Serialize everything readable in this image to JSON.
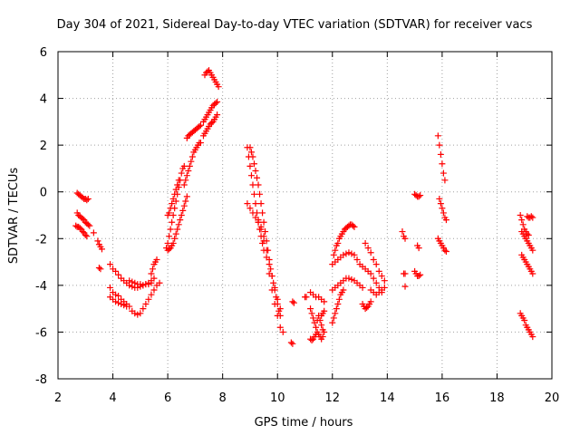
{
  "chart_data": {
    "type": "scatter",
    "title": "Day 304 of 2021, Sidereal Day-to-day VTEC variation (SDTVAR) for receiver vacs",
    "xlabel": "GPS time / hours",
    "ylabel": "SDTVAR / TECUs",
    "xlim": [
      2,
      20
    ],
    "ylim": [
      -8,
      6
    ],
    "xticks": [
      "2",
      "4",
      "6",
      "8",
      "10",
      "12",
      "14",
      "16",
      "18",
      "20"
    ],
    "yticks": [
      "-8",
      "-6",
      "-4",
      "-2",
      "0",
      "2",
      "4",
      "6"
    ],
    "grid": true,
    "marker": "+",
    "color": "#ff0000",
    "series": [
      {
        "name": "arc-1",
        "x": [
          2.7,
          2.75,
          2.8,
          2.85,
          2.9,
          2.95,
          3.0,
          3.05,
          3.1
        ],
        "y": [
          -0.05,
          -0.1,
          -0.15,
          -0.2,
          -0.25,
          -0.3,
          -0.3,
          -0.35,
          -0.3
        ]
      },
      {
        "name": "arc-2",
        "x": [
          2.7,
          2.75,
          2.8,
          2.85,
          2.9,
          2.95,
          3.0,
          3.05,
          3.1,
          3.15
        ],
        "y": [
          -0.9,
          -1.0,
          -1.05,
          -1.1,
          -1.15,
          -1.2,
          -1.3,
          -1.35,
          -1.4,
          -1.45
        ]
      },
      {
        "name": "arc-3",
        "x": [
          2.65,
          2.7,
          2.75,
          2.8,
          2.85,
          2.9,
          2.95,
          3.0,
          3.05
        ],
        "y": [
          -1.45,
          -1.5,
          -1.5,
          -1.55,
          -1.6,
          -1.7,
          -1.75,
          -1.85,
          -1.9
        ]
      },
      {
        "name": "arc-4",
        "x": [
          3.45,
          3.5,
          3.55,
          3.6
        ],
        "y": [
          -2.1,
          -2.25,
          -2.35,
          -2.45
        ]
      },
      {
        "name": "arc-5",
        "x": [
          3.5,
          3.55
        ],
        "y": [
          -3.25,
          -3.3
        ]
      },
      {
        "name": "arc-6",
        "x": [
          3.3
        ],
        "y": [
          -1.75
        ]
      },
      {
        "name": "arc-7",
        "x": [
          3.9,
          4.0,
          4.1,
          4.2,
          4.3,
          4.4,
          4.5,
          4.6,
          4.7,
          4.8,
          4.9,
          5.0,
          5.1,
          5.2,
          5.3,
          5.4
        ],
        "y": [
          -3.1,
          -3.3,
          -3.4,
          -3.55,
          -3.7,
          -3.8,
          -3.9,
          -4.0,
          -4.05,
          -4.1,
          -4.1,
          -4.05,
          -4.0,
          -3.95,
          -3.95,
          -3.9
        ]
      },
      {
        "name": "arc-8",
        "x": [
          3.9,
          4.0,
          4.1,
          4.2,
          4.3,
          4.4,
          4.5
        ],
        "y": [
          -4.1,
          -4.3,
          -4.4,
          -4.45,
          -4.6,
          -4.7,
          -4.8
        ]
      },
      {
        "name": "arc-9",
        "x": [
          3.9,
          4.0,
          4.1,
          4.2,
          4.3,
          4.4,
          4.5,
          4.6
        ],
        "y": [
          -4.5,
          -4.6,
          -4.7,
          -4.75,
          -4.8,
          -4.85,
          -4.9,
          -4.9
        ]
      },
      {
        "name": "arc-10",
        "x": [
          4.6,
          4.7,
          4.8,
          4.9,
          5.0,
          5.1,
          5.2,
          5.3,
          5.4,
          5.5
        ],
        "y": [
          -3.8,
          -3.85,
          -3.9,
          -3.95,
          -3.95,
          -4.0,
          -3.95,
          -3.9,
          -3.8,
          -3.7
        ]
      },
      {
        "name": "arc-11",
        "x": [
          5.4,
          5.45,
          5.5,
          5.55,
          5.6
        ],
        "y": [
          -3.5,
          -3.3,
          -3.1,
          -3.0,
          -2.9
        ]
      },
      {
        "name": "arc-12",
        "x": [
          4.7,
          4.8,
          4.9,
          5.0,
          5.1,
          5.2,
          5.3,
          5.4,
          5.5,
          5.6,
          5.7
        ],
        "y": [
          -5.1,
          -5.2,
          -5.25,
          -5.2,
          -5.0,
          -4.8,
          -4.6,
          -4.4,
          -4.2,
          -4.0,
          -3.9
        ]
      },
      {
        "name": "arc-13",
        "x": [
          5.95,
          6.0,
          6.05,
          6.1,
          6.15,
          6.2,
          6.25,
          6.3,
          6.35,
          6.4,
          6.45,
          6.5,
          6.55,
          6.6
        ],
        "y": [
          -2.4,
          -2.2,
          -1.9,
          -1.6,
          -1.3,
          -1.0,
          -0.7,
          -0.4,
          -0.1,
          0.2,
          0.5,
          0.8,
          1.0,
          1.1
        ]
      },
      {
        "name": "arc-14",
        "x": [
          6.0,
          6.05,
          6.1,
          6.15,
          6.2,
          6.25,
          6.3,
          6.35,
          6.4
        ],
        "y": [
          -1.0,
          -0.9,
          -0.7,
          -0.5,
          -0.3,
          -0.1,
          0.1,
          0.3,
          0.5
        ]
      },
      {
        "name": "arc-15",
        "x": [
          6.0,
          6.05,
          6.1,
          6.15,
          6.2,
          6.25,
          6.3,
          6.35,
          6.4,
          6.45,
          6.5,
          6.55,
          6.6,
          6.65,
          6.7
        ],
        "y": [
          -2.5,
          -2.45,
          -2.4,
          -2.3,
          -2.2,
          -2.0,
          -1.8,
          -1.6,
          -1.4,
          -1.2,
          -1.0,
          -0.8,
          -0.6,
          -0.4,
          -0.2
        ]
      },
      {
        "name": "arc-16",
        "x": [
          6.6,
          6.65,
          6.7,
          6.75,
          6.8,
          6.85,
          6.9,
          6.95,
          7.0,
          7.05,
          7.1,
          7.15,
          7.2
        ],
        "y": [
          0.3,
          0.5,
          0.7,
          0.9,
          1.1,
          1.3,
          1.5,
          1.7,
          1.8,
          1.9,
          2.0,
          2.1,
          2.1
        ]
      },
      {
        "name": "arc-17",
        "x": [
          6.7,
          6.75,
          6.8,
          6.85,
          6.9,
          6.95,
          7.0,
          7.05,
          7.1,
          7.15,
          7.2
        ],
        "y": [
          2.3,
          2.4,
          2.45,
          2.5,
          2.55,
          2.6,
          2.65,
          2.7,
          2.75,
          2.8,
          2.85
        ]
      },
      {
        "name": "arc-18",
        "x": [
          7.3,
          7.35,
          7.4,
          7.45,
          7.5,
          7.55,
          7.6,
          7.65,
          7.7,
          7.75,
          7.8
        ],
        "y": [
          2.4,
          2.5,
          2.6,
          2.7,
          2.8,
          2.9,
          2.95,
          3.0,
          3.1,
          3.2,
          3.3
        ]
      },
      {
        "name": "arc-19",
        "x": [
          7.3,
          7.35,
          7.4,
          7.45,
          7.5,
          7.55,
          7.6,
          7.65,
          7.7,
          7.75,
          7.8
        ],
        "y": [
          3.0,
          3.1,
          3.2,
          3.3,
          3.4,
          3.5,
          3.6,
          3.7,
          3.75,
          3.8,
          3.85
        ]
      },
      {
        "name": "arc-20",
        "x": [
          7.35,
          7.4,
          7.45,
          7.5,
          7.55,
          7.6,
          7.65,
          7.7,
          7.75,
          7.8,
          7.85
        ],
        "y": [
          5.0,
          5.1,
          5.15,
          5.2,
          5.1,
          5.0,
          4.9,
          4.8,
          4.7,
          4.6,
          4.5
        ]
      },
      {
        "name": "arc-21",
        "x": [
          8.9,
          8.95,
          9.0,
          9.05,
          9.1,
          9.15,
          9.2,
          9.25,
          9.3,
          9.35,
          9.4,
          9.45,
          9.5
        ],
        "y": [
          1.9,
          1.5,
          1.1,
          0.7,
          0.3,
          -0.1,
          -0.5,
          -0.9,
          -1.3,
          -1.6,
          -1.9,
          -2.2,
          -2.5
        ]
      },
      {
        "name": "arc-22",
        "x": [
          9.0,
          9.05,
          9.1,
          9.15,
          9.2,
          9.25,
          9.3,
          9.35,
          9.4,
          9.45,
          9.5,
          9.55,
          9.6,
          9.65,
          9.7,
          9.75,
          9.8,
          9.85,
          9.9,
          9.95,
          10.0,
          10.05,
          10.1
        ],
        "y": [
          1.9,
          1.7,
          1.5,
          1.2,
          0.9,
          0.6,
          0.3,
          -0.1,
          -0.5,
          -0.9,
          -1.3,
          -1.7,
          -2.1,
          -2.5,
          -2.9,
          -3.3,
          -3.6,
          -3.9,
          -4.2,
          -4.5,
          -4.8,
          -5.1,
          -5.3
        ]
      },
      {
        "name": "arc-23",
        "x": [
          8.9,
          9.0,
          9.1,
          9.2,
          9.3,
          9.4,
          9.5,
          9.6,
          9.7,
          9.8,
          9.9,
          10.0,
          10.1,
          10.2
        ],
        "y": [
          -0.5,
          -0.7,
          -0.9,
          -1.1,
          -1.3,
          -1.6,
          -2.1,
          -2.8,
          -3.5,
          -4.2,
          -4.8,
          -5.3,
          -5.8,
          -6.0
        ]
      },
      {
        "name": "arc-24",
        "x": [
          9.3,
          9.4,
          9.5,
          9.6,
          9.7,
          9.8,
          9.9,
          10.0,
          10.1
        ],
        "y": [
          -1.2,
          -1.5,
          -1.9,
          -2.5,
          -3.1,
          -3.6,
          -4.1,
          -4.6,
          -5.0
        ]
      },
      {
        "name": "arc-25",
        "x": [
          10.5,
          10.55
        ],
        "y": [
          -6.45,
          -6.5
        ]
      },
      {
        "name": "arc-26",
        "x": [
          10.55,
          10.6
        ],
        "y": [
          -4.7,
          -4.75
        ]
      },
      {
        "name": "arc-27",
        "x": [
          11.0,
          11.05
        ],
        "y": [
          -4.5,
          -4.5
        ]
      },
      {
        "name": "arc-28",
        "x": [
          11.2,
          11.3,
          11.4,
          11.5,
          11.6,
          11.7
        ],
        "y": [
          -4.3,
          -4.4,
          -4.5,
          -4.5,
          -4.6,
          -4.7
        ]
      },
      {
        "name": "arc-29",
        "x": [
          11.2,
          11.25,
          11.3,
          11.35,
          11.4,
          11.45,
          11.5,
          11.55,
          11.6,
          11.65,
          11.7
        ],
        "y": [
          -5.0,
          -5.2,
          -5.4,
          -5.6,
          -5.8,
          -5.5,
          -5.3,
          -5.5,
          -5.7,
          -5.9,
          -6.0
        ]
      },
      {
        "name": "arc-30",
        "x": [
          11.2,
          11.25,
          11.3,
          11.35,
          11.4,
          11.45,
          11.5,
          11.55,
          11.6,
          11.65
        ],
        "y": [
          -6.3,
          -6.35,
          -6.3,
          -6.2,
          -6.1,
          -6.0,
          -6.1,
          -6.2,
          -6.3,
          -6.2
        ]
      },
      {
        "name": "arc-31",
        "x": [
          11.6,
          11.65,
          11.7
        ],
        "y": [
          -5.3,
          -5.2,
          -5.1
        ]
      },
      {
        "name": "arc-32",
        "x": [
          12.05,
          12.1,
          12.15,
          12.2,
          12.25,
          12.3,
          12.35,
          12.4,
          12.45,
          12.5,
          12.55,
          12.6,
          12.65,
          12.7,
          12.75,
          12.8
        ],
        "y": [
          -2.7,
          -2.5,
          -2.3,
          -2.2,
          -2.0,
          -1.9,
          -1.8,
          -1.7,
          -1.6,
          -1.55,
          -1.5,
          -1.45,
          -1.4,
          -1.4,
          -1.45,
          -1.5
        ]
      },
      {
        "name": "arc-33",
        "x": [
          12.0,
          12.1,
          12.2,
          12.3,
          12.4,
          12.5,
          12.6,
          12.7,
          12.8,
          12.9,
          13.0
        ],
        "y": [
          -3.1,
          -3.0,
          -2.9,
          -2.8,
          -2.7,
          -2.65,
          -2.6,
          -2.65,
          -2.7,
          -2.9,
          -3.1
        ]
      },
      {
        "name": "arc-34",
        "x": [
          12.0,
          12.1,
          12.2,
          12.3,
          12.4,
          12.5,
          12.6,
          12.7,
          12.8,
          12.9,
          13.0,
          13.1
        ],
        "y": [
          -4.2,
          -4.1,
          -4.0,
          -3.9,
          -3.8,
          -3.7,
          -3.7,
          -3.75,
          -3.8,
          -3.9,
          -4.0,
          -4.1
        ]
      },
      {
        "name": "arc-35",
        "x": [
          12.0,
          12.05,
          12.1,
          12.15,
          12.2,
          12.25,
          12.3,
          12.35,
          12.4
        ],
        "y": [
          -5.6,
          -5.4,
          -5.2,
          -5.0,
          -4.8,
          -4.6,
          -4.4,
          -4.3,
          -4.2
        ]
      },
      {
        "name": "arc-36",
        "x": [
          13.2,
          13.3,
          13.4,
          13.5,
          13.6,
          13.7,
          13.8,
          13.9
        ],
        "y": [
          -2.2,
          -2.4,
          -2.6,
          -2.9,
          -3.1,
          -3.4,
          -3.6,
          -3.8
        ]
      },
      {
        "name": "arc-37",
        "x": [
          13.1,
          13.2,
          13.3,
          13.4,
          13.5,
          13.6,
          13.7,
          13.8
        ],
        "y": [
          -3.2,
          -3.3,
          -3.4,
          -3.5,
          -3.7,
          -3.9,
          -4.1,
          -4.3
        ]
      },
      {
        "name": "arc-38",
        "x": [
          13.1,
          13.15,
          13.2,
          13.25,
          13.3,
          13.35,
          13.4
        ],
        "y": [
          -4.8,
          -4.9,
          -5.0,
          -4.95,
          -4.9,
          -4.8,
          -4.7
        ]
      },
      {
        "name": "arc-39",
        "x": [
          13.4,
          13.5,
          13.6,
          13.7,
          13.8,
          13.9
        ],
        "y": [
          -4.2,
          -4.3,
          -4.4,
          -4.3,
          -4.2,
          -4.1
        ]
      },
      {
        "name": "arc-40",
        "x": [
          14.55,
          14.6,
          14.65
        ],
        "y": [
          -1.7,
          -1.9,
          -2.0
        ]
      },
      {
        "name": "arc-41",
        "x": [
          14.6,
          14.65
        ],
        "y": [
          -3.5,
          -3.5
        ]
      },
      {
        "name": "arc-42",
        "x": [
          14.65
        ],
        "y": [
          -4.05
        ]
      },
      {
        "name": "arc-43",
        "x": [
          15.0,
          15.05,
          15.1,
          15.15,
          15.2
        ],
        "y": [
          -0.1,
          -0.15,
          -0.2,
          -0.2,
          -0.15
        ]
      },
      {
        "name": "arc-44",
        "x": [
          15.1,
          15.15
        ],
        "y": [
          -2.3,
          -2.4
        ]
      },
      {
        "name": "arc-45",
        "x": [
          15.0,
          15.05,
          15.1,
          15.15,
          15.2
        ],
        "y": [
          -3.4,
          -3.5,
          -3.6,
          -3.6,
          -3.55
        ]
      },
      {
        "name": "arc-46",
        "x": [
          15.85,
          15.9,
          15.95,
          16.0,
          16.05,
          16.1
        ],
        "y": [
          2.4,
          2.0,
          1.6,
          1.2,
          0.8,
          0.5
        ]
      },
      {
        "name": "arc-47",
        "x": [
          15.9,
          15.95,
          16.0,
          16.05,
          16.1,
          16.15
        ],
        "y": [
          -0.3,
          -0.5,
          -0.7,
          -0.9,
          -1.1,
          -1.2
        ]
      },
      {
        "name": "arc-48",
        "x": [
          15.85,
          15.9,
          15.95,
          16.0,
          16.05,
          16.1,
          16.15
        ],
        "y": [
          -2.0,
          -2.1,
          -2.2,
          -2.3,
          -2.4,
          -2.5,
          -2.55
        ]
      },
      {
        "name": "arc-49",
        "x": [
          18.85,
          18.9,
          18.95,
          19.0,
          19.05,
          19.1,
          19.15
        ],
        "y": [
          -1.0,
          -1.2,
          -1.4,
          -1.6,
          -1.7,
          -1.8,
          -1.85
        ]
      },
      {
        "name": "arc-50",
        "x": [
          19.1,
          19.15,
          19.2,
          19.25,
          19.3
        ],
        "y": [
          -1.05,
          -1.1,
          -1.1,
          -1.05,
          -1.1
        ]
      },
      {
        "name": "arc-51",
        "x": [
          18.9,
          18.95,
          19.0,
          19.05,
          19.1,
          19.15,
          19.2,
          19.25,
          19.3
        ],
        "y": [
          -1.7,
          -1.8,
          -1.9,
          -2.0,
          -2.1,
          -2.2,
          -2.3,
          -2.4,
          -2.5
        ]
      },
      {
        "name": "arc-52",
        "x": [
          18.9,
          18.95,
          19.0,
          19.05,
          19.1,
          19.15,
          19.2,
          19.25,
          19.3
        ],
        "y": [
          -2.7,
          -2.8,
          -2.9,
          -3.0,
          -3.1,
          -3.2,
          -3.3,
          -3.4,
          -3.5
        ]
      },
      {
        "name": "arc-53",
        "x": [
          18.85,
          18.9,
          18.95,
          19.0,
          19.05,
          19.1,
          19.15,
          19.2,
          19.25,
          19.3
        ],
        "y": [
          -5.2,
          -5.3,
          -5.4,
          -5.5,
          -5.7,
          -5.8,
          -5.9,
          -6.0,
          -6.1,
          -6.2
        ]
      }
    ]
  }
}
